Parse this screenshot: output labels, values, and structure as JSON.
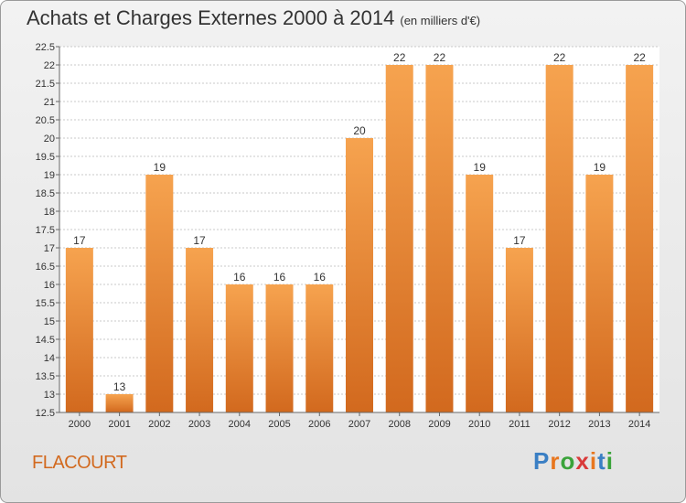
{
  "header": {
    "title": "Achats et Charges Externes 2000 à 2014",
    "unit": "(en milliers d'€)"
  },
  "footer": {
    "commune": "FLACOURT",
    "brand": "Proxiti"
  },
  "colors": {
    "bar_top": "#f6a34f",
    "bar_bottom": "#d2691e",
    "accent_text": "#d2691e"
  },
  "chart_data": {
    "type": "bar",
    "title": "Achats et Charges Externes 2000 à 2014",
    "categories": [
      "2000",
      "2001",
      "2002",
      "2003",
      "2004",
      "2005",
      "2006",
      "2007",
      "2008",
      "2009",
      "2010",
      "2011",
      "2012",
      "2013",
      "2014"
    ],
    "values": [
      17,
      13,
      19,
      17,
      16,
      16,
      16,
      20,
      22,
      22,
      19,
      17,
      22,
      19,
      22
    ],
    "ylim": [
      12.5,
      22.5
    ],
    "yticks": [
      "12.5",
      "13",
      "13.5",
      "14",
      "14.5",
      "15",
      "15.5",
      "16",
      "16.5",
      "17",
      "17.5",
      "18",
      "18.5",
      "19",
      "19.5",
      "20",
      "20.5",
      "21",
      "21.5",
      "22",
      "22.5"
    ],
    "grid": true,
    "legend": "none"
  }
}
